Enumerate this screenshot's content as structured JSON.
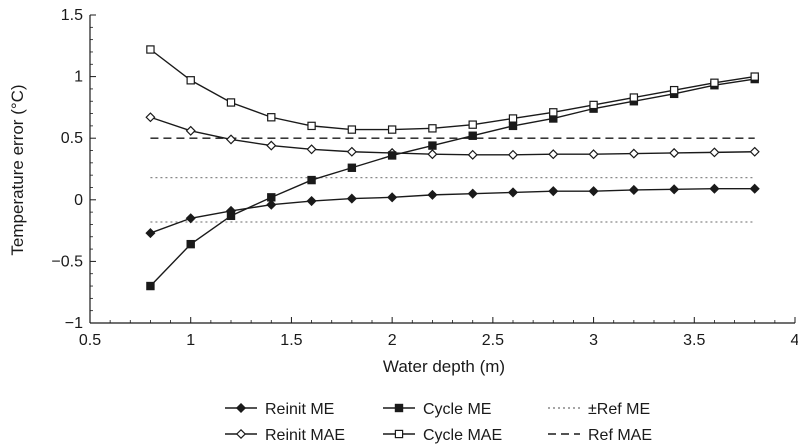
{
  "chart_data": {
    "type": "line",
    "title": "",
    "xlabel": "Water depth (m)",
    "ylabel": "Temperature error (°C)",
    "xlim": [
      0.5,
      4
    ],
    "ylim": [
      -1,
      1.5
    ],
    "xticks": [
      0.5,
      1,
      1.5,
      2,
      2.5,
      3,
      3.5,
      4
    ],
    "xtick_labels": [
      "0.5",
      "1",
      "1.5",
      "2",
      "2.5",
      "3",
      "3.5",
      "4"
    ],
    "yticks": [
      -1,
      -0.5,
      0,
      0.5,
      1,
      1.5
    ],
    "ytick_labels": [
      "−1",
      "−0.5",
      "0",
      "0.5",
      "1",
      "1.5"
    ],
    "x": [
      0.8,
      1.0,
      1.2,
      1.4,
      1.6,
      1.8,
      2.0,
      2.2,
      2.4,
      2.6,
      2.8,
      3.0,
      3.2,
      3.4,
      3.6,
      3.8
    ],
    "series": [
      {
        "name": "Reinit ME",
        "marker": "filled-diamond",
        "line": "solid",
        "color": "#1a1a1a",
        "values": [
          -0.27,
          -0.15,
          -0.09,
          -0.04,
          -0.01,
          0.01,
          0.02,
          0.04,
          0.05,
          0.06,
          0.07,
          0.07,
          0.08,
          0.085,
          0.09,
          0.09
        ]
      },
      {
        "name": "Reinit MAE",
        "marker": "open-diamond",
        "line": "solid",
        "color": "#1a1a1a",
        "values": [
          0.67,
          0.56,
          0.49,
          0.44,
          0.41,
          0.39,
          0.38,
          0.37,
          0.365,
          0.365,
          0.37,
          0.37,
          0.375,
          0.38,
          0.385,
          0.39
        ]
      },
      {
        "name": "Cycle ME",
        "marker": "filled-square",
        "line": "solid",
        "color": "#1a1a1a",
        "values": [
          -0.7,
          -0.36,
          -0.13,
          0.02,
          0.16,
          0.26,
          0.36,
          0.44,
          0.52,
          0.6,
          0.66,
          0.74,
          0.8,
          0.86,
          0.93,
          0.98
        ]
      },
      {
        "name": "Cycle MAE",
        "marker": "open-square",
        "line": "solid",
        "color": "#1a1a1a",
        "values": [
          1.22,
          0.97,
          0.79,
          0.67,
          0.6,
          0.57,
          0.57,
          0.58,
          0.61,
          0.66,
          0.71,
          0.77,
          0.83,
          0.89,
          0.95,
          1.0
        ]
      }
    ],
    "reference_lines": [
      {
        "name": "±Ref ME",
        "style": "dotted",
        "color": "#888888",
        "values": [
          0.18,
          -0.18
        ],
        "x_range": [
          0.8,
          3.8
        ]
      },
      {
        "name": "Ref MAE",
        "style": "dashed",
        "color": "#1a1a1a",
        "values": [
          0.5
        ],
        "x_range": [
          0.8,
          3.8
        ]
      }
    ],
    "legend": {
      "position": "bottom",
      "rows": [
        [
          {
            "label": "Reinit ME",
            "marker": "filled-diamond",
            "line": "solid"
          },
          {
            "label": "Cycle ME",
            "marker": "filled-square",
            "line": "solid"
          },
          {
            "label": "±Ref ME",
            "marker": "none",
            "line": "dotted"
          }
        ],
        [
          {
            "label": "Reinit MAE",
            "marker": "open-diamond",
            "line": "solid"
          },
          {
            "label": "Cycle MAE",
            "marker": "open-square",
            "line": "solid"
          },
          {
            "label": "Ref MAE",
            "marker": "none",
            "line": "dashed"
          }
        ]
      ]
    },
    "grid": false
  }
}
